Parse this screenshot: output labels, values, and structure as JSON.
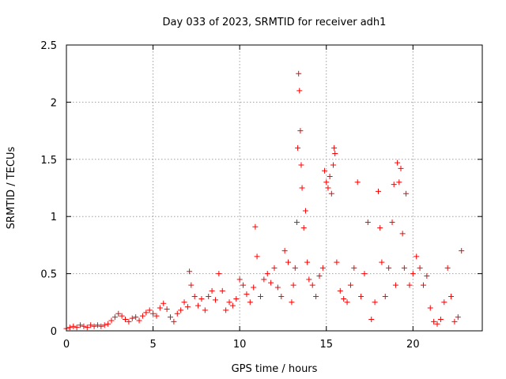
{
  "chart_data": {
    "type": "scatter",
    "title": "Day 033 of 2023, SRMTID for receiver adh1",
    "xlabel": "GPS time / hours",
    "ylabel": "SRMTID / TECUs",
    "xlim": [
      0,
      24
    ],
    "ylim": [
      0,
      2.5
    ],
    "xticks": [
      0,
      5,
      10,
      15,
      20
    ],
    "xtick_labels": [
      "0",
      "5",
      "10",
      "15",
      "20"
    ],
    "yticks": [
      0,
      0.5,
      1,
      1.5,
      2,
      2.5
    ],
    "ytick_labels": [
      "0",
      "0.5",
      "1",
      "1.5",
      "2",
      "2.5"
    ],
    "grid": true,
    "marker": "+",
    "series": [
      {
        "name": "adh1",
        "color": "#ff0000",
        "points": [
          [
            0.0,
            0.02
          ],
          [
            0.2,
            0.03
          ],
          [
            0.4,
            0.04
          ],
          [
            0.6,
            0.03
          ],
          [
            0.8,
            0.05
          ],
          [
            1.0,
            0.04
          ],
          [
            1.2,
            0.03
          ],
          [
            1.4,
            0.05
          ],
          [
            1.6,
            0.04
          ],
          [
            1.8,
            0.05
          ],
          [
            2.0,
            0.04
          ],
          [
            2.2,
            0.05
          ],
          [
            2.4,
            0.06
          ],
          [
            2.6,
            0.09
          ],
          [
            2.8,
            0.12
          ],
          [
            3.0,
            0.15
          ],
          [
            3.2,
            0.13
          ],
          [
            3.4,
            0.1
          ],
          [
            3.6,
            0.08
          ],
          [
            3.8,
            0.11
          ],
          [
            4.0,
            0.12
          ],
          [
            4.2,
            0.09
          ],
          [
            4.4,
            0.13
          ],
          [
            4.6,
            0.16
          ],
          [
            4.8,
            0.18
          ],
          [
            5.0,
            0.15
          ],
          [
            5.2,
            0.13
          ],
          [
            5.4,
            0.2
          ],
          [
            5.6,
            0.24
          ],
          [
            5.8,
            0.19
          ],
          [
            6.0,
            0.12
          ],
          [
            6.2,
            0.08
          ],
          [
            6.4,
            0.15
          ],
          [
            6.6,
            0.18
          ],
          [
            6.8,
            0.25
          ],
          [
            7.0,
            0.21
          ],
          [
            7.1,
            0.52
          ],
          [
            7.2,
            0.4
          ],
          [
            7.4,
            0.3
          ],
          [
            7.6,
            0.22
          ],
          [
            7.8,
            0.28
          ],
          [
            8.0,
            0.18
          ],
          [
            8.2,
            0.3
          ],
          [
            8.4,
            0.35
          ],
          [
            8.6,
            0.27
          ],
          [
            8.8,
            0.5
          ],
          [
            9.0,
            0.35
          ],
          [
            9.2,
            0.18
          ],
          [
            9.4,
            0.25
          ],
          [
            9.6,
            0.22
          ],
          [
            9.8,
            0.28
          ],
          [
            10.0,
            0.45
          ],
          [
            10.2,
            0.4
          ],
          [
            10.4,
            0.32
          ],
          [
            10.6,
            0.25
          ],
          [
            10.8,
            0.38
          ],
          [
            10.9,
            0.91
          ],
          [
            11.0,
            0.65
          ],
          [
            11.2,
            0.3
          ],
          [
            11.4,
            0.45
          ],
          [
            11.6,
            0.5
          ],
          [
            11.8,
            0.42
          ],
          [
            12.0,
            0.55
          ],
          [
            12.2,
            0.38
          ],
          [
            12.4,
            0.3
          ],
          [
            12.6,
            0.7
          ],
          [
            12.8,
            0.6
          ],
          [
            13.0,
            0.25
          ],
          [
            13.1,
            0.4
          ],
          [
            13.2,
            0.55
          ],
          [
            13.3,
            0.95
          ],
          [
            13.35,
            1.6
          ],
          [
            13.4,
            2.25
          ],
          [
            13.45,
            2.1
          ],
          [
            13.5,
            1.75
          ],
          [
            13.55,
            1.45
          ],
          [
            13.6,
            1.25
          ],
          [
            13.7,
            0.9
          ],
          [
            13.8,
            1.05
          ],
          [
            13.9,
            0.6
          ],
          [
            14.0,
            0.45
          ],
          [
            14.2,
            0.4
          ],
          [
            14.4,
            0.3
          ],
          [
            14.6,
            0.48
          ],
          [
            14.8,
            0.55
          ],
          [
            14.9,
            1.4
          ],
          [
            15.0,
            1.3
          ],
          [
            15.1,
            1.25
          ],
          [
            15.2,
            1.35
          ],
          [
            15.3,
            1.2
          ],
          [
            15.4,
            1.45
          ],
          [
            15.45,
            1.6
          ],
          [
            15.5,
            1.55
          ],
          [
            15.6,
            0.6
          ],
          [
            15.8,
            0.35
          ],
          [
            16.0,
            0.28
          ],
          [
            16.2,
            0.25
          ],
          [
            16.4,
            0.4
          ],
          [
            16.6,
            0.55
          ],
          [
            16.8,
            1.3
          ],
          [
            17.0,
            0.3
          ],
          [
            17.2,
            0.5
          ],
          [
            17.4,
            0.95
          ],
          [
            17.6,
            0.1
          ],
          [
            17.8,
            0.25
          ],
          [
            18.0,
            1.22
          ],
          [
            18.1,
            0.9
          ],
          [
            18.2,
            0.6
          ],
          [
            18.4,
            0.3
          ],
          [
            18.6,
            0.55
          ],
          [
            18.8,
            0.95
          ],
          [
            18.9,
            1.28
          ],
          [
            19.0,
            0.4
          ],
          [
            19.1,
            1.47
          ],
          [
            19.2,
            1.3
          ],
          [
            19.3,
            1.42
          ],
          [
            19.4,
            0.85
          ],
          [
            19.5,
            0.55
          ],
          [
            19.6,
            1.2
          ],
          [
            19.8,
            0.4
          ],
          [
            20.0,
            0.5
          ],
          [
            20.2,
            0.65
          ],
          [
            20.4,
            0.55
          ],
          [
            20.6,
            0.4
          ],
          [
            20.8,
            0.48
          ],
          [
            21.0,
            0.2
          ],
          [
            21.2,
            0.08
          ],
          [
            21.4,
            0.06
          ],
          [
            21.6,
            0.1
          ],
          [
            21.8,
            0.25
          ],
          [
            22.0,
            0.55
          ],
          [
            22.2,
            0.3
          ],
          [
            22.4,
            0.08
          ],
          [
            22.6,
            0.12
          ],
          [
            22.8,
            0.7
          ]
        ]
      }
    ]
  }
}
